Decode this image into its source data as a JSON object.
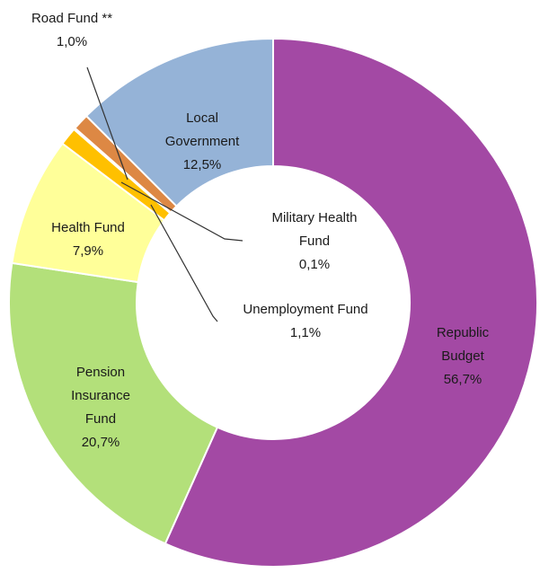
{
  "chart_data": {
    "type": "donut",
    "categories": [
      "Republic Budget",
      "Pension Insurance Fund",
      "Health Fund",
      "Unemployment Fund",
      "Military Health Fund",
      "Road Fund **",
      "Local Government"
    ],
    "values": [
      56.7,
      20.7,
      7.9,
      1.1,
      0.1,
      1.0,
      12.5
    ],
    "value_labels": [
      "56,7%",
      "20,7%",
      "7,9%",
      "1,1%",
      "0,1%",
      "1,0%",
      "12,5%"
    ],
    "colors": [
      "#a349a4",
      "#b3e07a",
      "#ffff99",
      "#ffc000",
      "#f2f2f2",
      "#dd8844",
      "#95b3d7"
    ]
  }
}
